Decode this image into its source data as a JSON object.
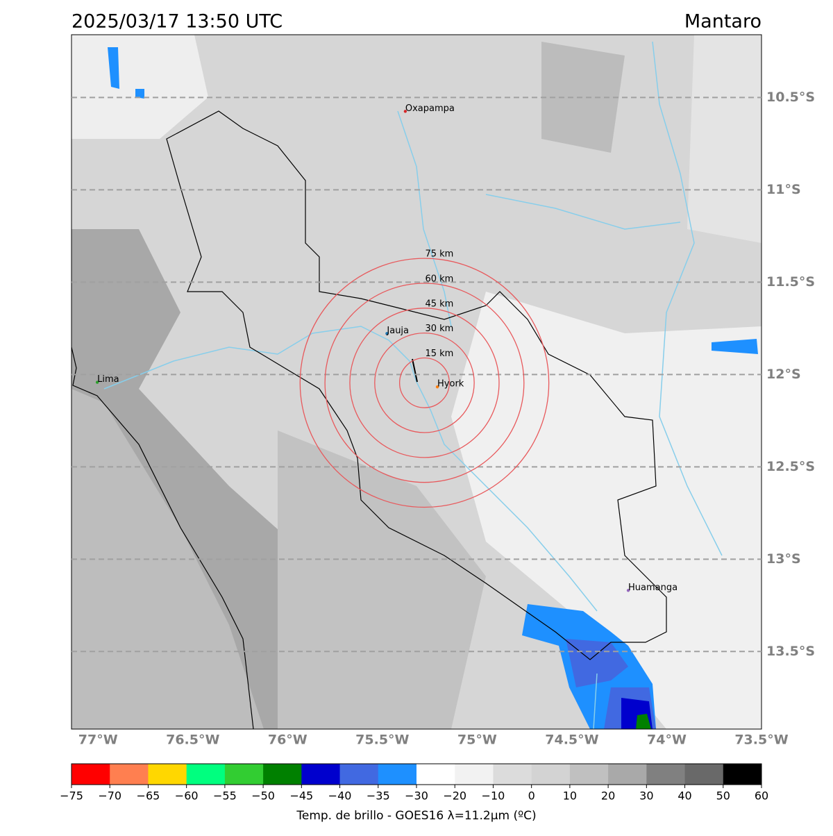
{
  "header": {
    "title": "2025/03/17 13:50 UTC",
    "region": "Mantaro"
  },
  "map": {
    "lonlim": [
      -77.14,
      -73.5
    ],
    "latlim": [
      -10.16,
      -13.92
    ],
    "lon_ticks": [
      {
        "value": -77,
        "label": "77°W"
      },
      {
        "value": -76.5,
        "label": "76.5°W"
      },
      {
        "value": -76,
        "label": "76°W"
      },
      {
        "value": -75.5,
        "label": "75.5°W"
      },
      {
        "value": -75,
        "label": "75°W"
      },
      {
        "value": -74.5,
        "label": "74.5°W"
      },
      {
        "value": -74,
        "label": "74°W"
      },
      {
        "value": -73.5,
        "label": "73.5°W"
      }
    ],
    "lat_ticks": [
      {
        "value": -10.5,
        "label": "10.5°S"
      },
      {
        "value": -11,
        "label": "11°S"
      },
      {
        "value": -11.5,
        "label": "11.5°S"
      },
      {
        "value": -12,
        "label": "12°S"
      },
      {
        "value": -12.5,
        "label": "12.5°S"
      },
      {
        "value": -13,
        "label": "13°S"
      },
      {
        "value": -13.5,
        "label": "13.5°S"
      }
    ],
    "cities": [
      {
        "name": "Oxapampa",
        "lon": -75.379,
        "lat": -10.575,
        "color": "#d62728"
      },
      {
        "name": "Jauja",
        "lon": -75.476,
        "lat": -11.778,
        "color": "#1f77b4"
      },
      {
        "name": "Hyork",
        "lon": -75.21,
        "lat": -12.067,
        "color": "#ff7f0e"
      },
      {
        "name": "Huamanga",
        "lon": -74.203,
        "lat": -13.169,
        "color": "#9467bd"
      },
      {
        "name": "Lima",
        "lon": -77.004,
        "lat": -12.042,
        "color": "#2ca02c"
      }
    ],
    "ring_center": {
      "lon": -75.278,
      "lat": -12.045
    },
    "rings": [
      {
        "value": 15,
        "label": "15 km"
      },
      {
        "value": 30,
        "label": "30 km"
      },
      {
        "value": 45,
        "label": "45 km"
      },
      {
        "value": 60,
        "label": "60 km"
      },
      {
        "value": 75,
        "label": "75 km"
      }
    ],
    "ring_color": "#e8595c"
  },
  "colorbar": {
    "label": "Temp. de brillo - GOES16 λ=11.2μm (ºC)",
    "ticks": [
      {
        "value": -75,
        "label": "−75"
      },
      {
        "value": -70,
        "label": "−70"
      },
      {
        "value": -65,
        "label": "−65"
      },
      {
        "value": -60,
        "label": "−60"
      },
      {
        "value": -55,
        "label": "−55"
      },
      {
        "value": -50,
        "label": "−50"
      },
      {
        "value": -45,
        "label": "−45"
      },
      {
        "value": -40,
        "label": "−40"
      },
      {
        "value": -35,
        "label": "−35"
      },
      {
        "value": -30,
        "label": "−30"
      },
      {
        "value": -20,
        "label": "−20"
      },
      {
        "value": -10,
        "label": "−10"
      },
      0,
      10,
      20,
      30,
      40,
      50,
      60
    ],
    "colors": [
      "#ff0000",
      "#ff7f50",
      "#ffd700",
      "#00ff7f",
      "#32cd32",
      "#008000",
      "#0000cd",
      "#4169e1",
      "#1e90ff",
      "#ffffff",
      "#f2f2f2",
      "#dcdcdc",
      "#d3d3d3",
      "#c0c0c0",
      "#a9a9a9",
      "#808080",
      "#696969",
      "#000000"
    ]
  }
}
